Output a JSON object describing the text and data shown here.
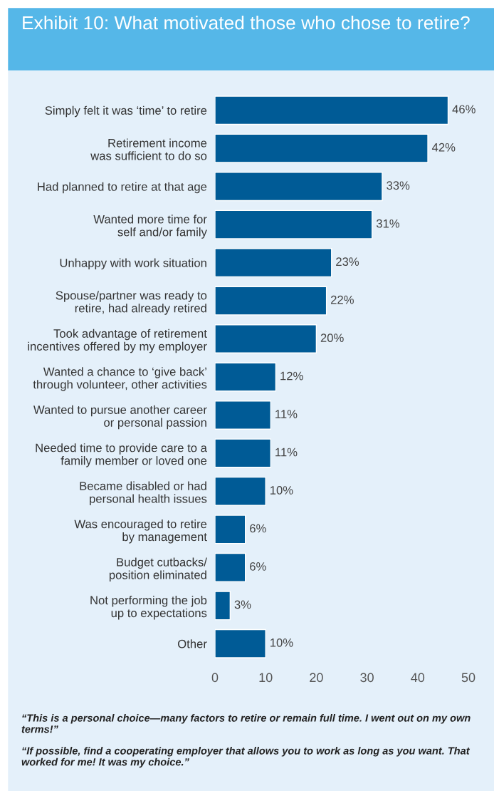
{
  "chart_data": {
    "type": "bar",
    "orientation": "horizontal",
    "title": "Exhibit 10: What motivated those who chose to retire?",
    "categories": [
      "Simply felt it was ‘time’ to retire",
      "Retirement income\nwas sufficient to do so",
      "Had planned to retire at that age",
      "Wanted more time for\nself and/or family",
      "Unhappy with work situation",
      "Spouse/partner was ready to\nretire, had already retired",
      "Took advantage of retirement\nincentives offered by my employer",
      "Wanted a chance to ‘give back’\nthrough volunteer, other activities",
      "Wanted to pursue another career\nor personal passion",
      "Needed time to provide care to a\nfamily member or loved one",
      "Became disabled or had\npersonal health issues",
      "Was encouraged to retire\nby management",
      "Budget cutbacks/\nposition eliminated",
      "Not performing the job\nup to expectations",
      "Other"
    ],
    "values": [
      46,
      42,
      33,
      31,
      23,
      22,
      20,
      12,
      11,
      11,
      10,
      6,
      6,
      3,
      10
    ],
    "value_labels": [
      "46%",
      "42%",
      "33%",
      "31%",
      "23%",
      "22%",
      "20%",
      "12%",
      "11%",
      "11%",
      "10%",
      "6%",
      "6%",
      "3%",
      "10%"
    ],
    "color": "#005b96",
    "xlim": [
      0,
      50
    ],
    "xticks": [
      0,
      10,
      20,
      30,
      40,
      50
    ],
    "grid": false,
    "legend": false,
    "annotations": [
      "“This is a personal choice—many factors to retire or remain full time. I went out on my own terms!”",
      "“If possible, find a cooperating employer that allows you to work as long as you want. That worked for me! It was my choice.”"
    ]
  }
}
